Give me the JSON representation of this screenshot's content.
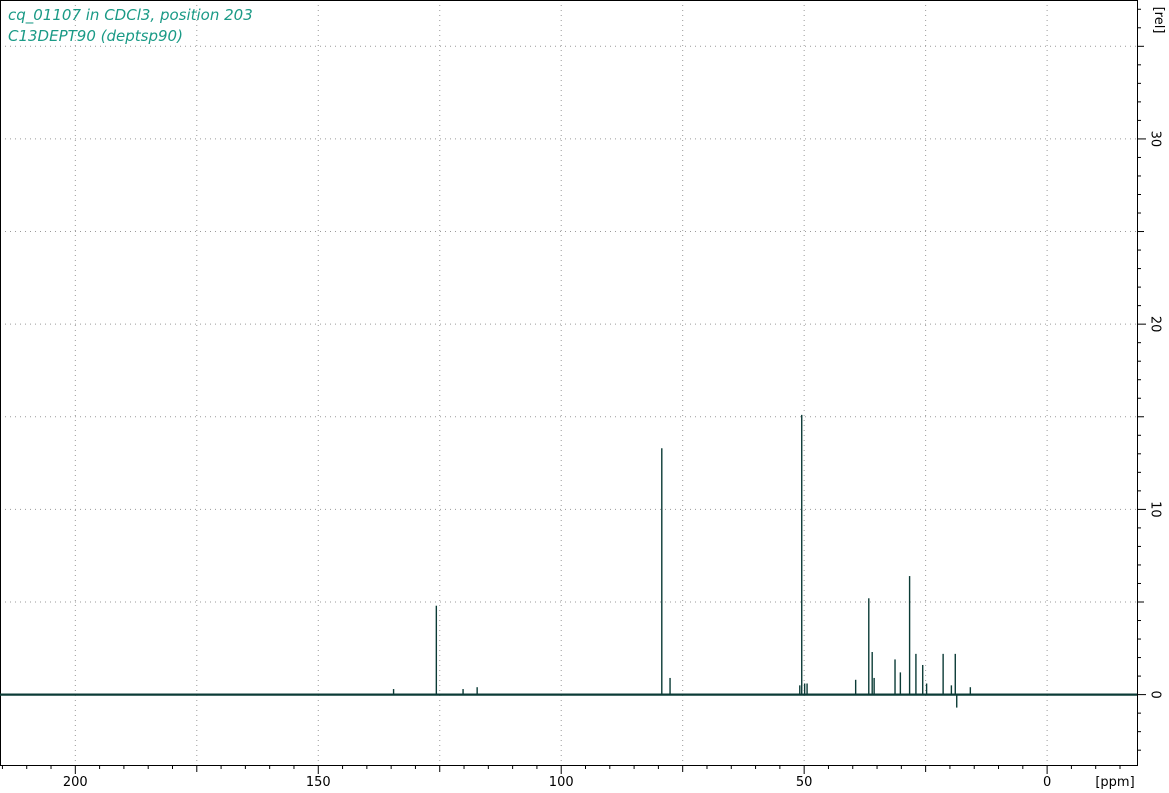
{
  "title_lines": [
    "cq_01107 in CDCl3, position 203",
    "C13DEPT90 (deptsp90)"
  ],
  "colors": {
    "spectrum": "#0b3b36",
    "title": "#1a9a86",
    "grid": "#9a9a9a",
    "axis": "#000000"
  },
  "chart_data": {
    "type": "line",
    "xlabel": "[ppm]",
    "ylabel": "[rel]",
    "xlim": [
      215.5,
      -18.5
    ],
    "ylim": [
      -3.8,
      37.5
    ],
    "x_ticks": [
      200,
      150,
      100,
      50,
      0
    ],
    "y_ticks": [
      0,
      10,
      20,
      30
    ],
    "grid": true,
    "peaks": [
      {
        "x": 134.5,
        "y": 0.3
      },
      {
        "x": 125.7,
        "y": 4.8
      },
      {
        "x": 120.2,
        "y": 0.3
      },
      {
        "x": 117.3,
        "y": 0.4
      },
      {
        "x": 79.3,
        "y": 13.3
      },
      {
        "x": 77.6,
        "y": 0.9
      },
      {
        "x": 50.9,
        "y": 0.5
      },
      {
        "x": 50.5,
        "y": 15.1
      },
      {
        "x": 49.9,
        "y": 0.6
      },
      {
        "x": 49.4,
        "y": 0.6
      },
      {
        "x": 39.4,
        "y": 0.8
      },
      {
        "x": 36.7,
        "y": 5.2
      },
      {
        "x": 36.0,
        "y": 2.3
      },
      {
        "x": 35.6,
        "y": 0.9
      },
      {
        "x": 31.3,
        "y": 1.9
      },
      {
        "x": 30.2,
        "y": 1.2
      },
      {
        "x": 28.3,
        "y": 6.4
      },
      {
        "x": 27.0,
        "y": 2.2
      },
      {
        "x": 25.6,
        "y": 1.6
      },
      {
        "x": 24.8,
        "y": 0.6
      },
      {
        "x": 21.4,
        "y": 2.2
      },
      {
        "x": 19.7,
        "y": 0.5
      },
      {
        "x": 18.9,
        "y": 2.2
      },
      {
        "x": 18.6,
        "y": -0.7
      },
      {
        "x": 15.8,
        "y": 0.4
      }
    ]
  }
}
